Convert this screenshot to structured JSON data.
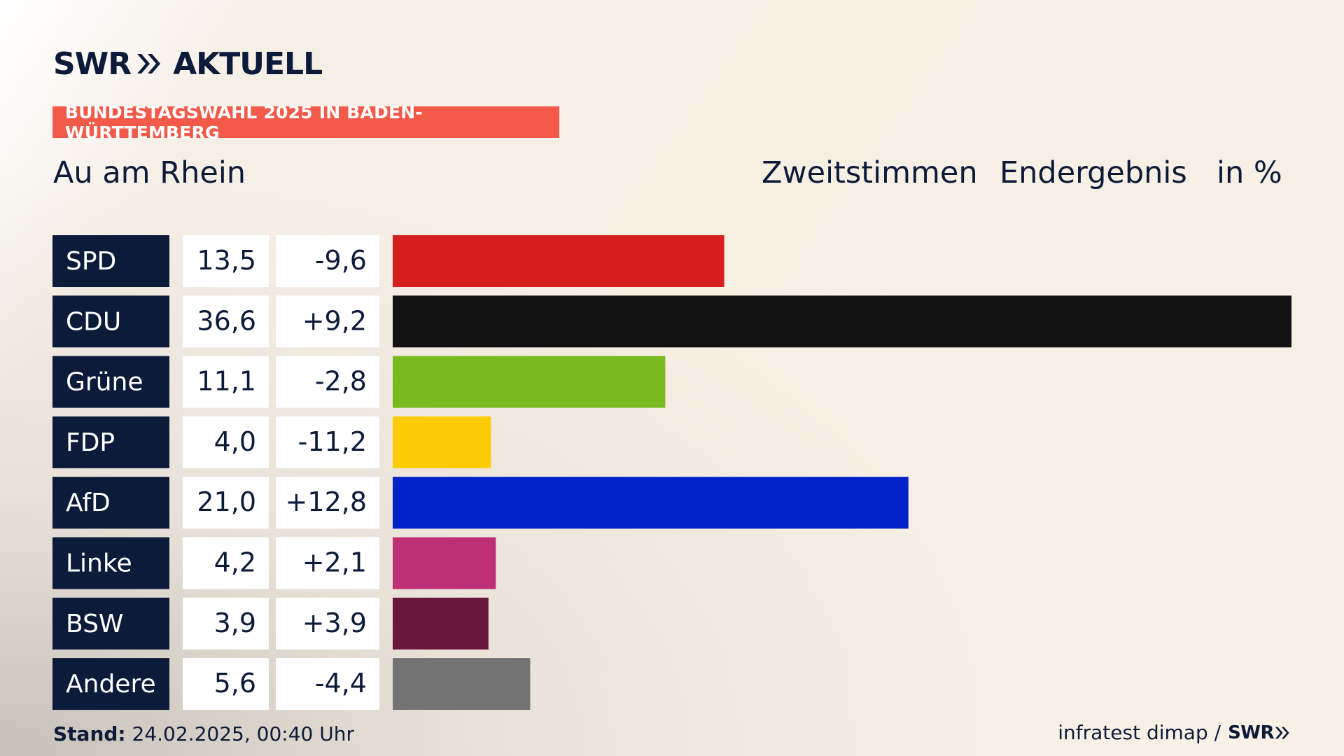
{
  "header": {
    "logo_left": "SWR",
    "logo_right": "AKTUELL",
    "banner": "BUNDESTAGSWAHL 2025 IN BADEN-WÜRTTEMBERG",
    "place": "Au am Rhein",
    "col_labels": [
      "Zweitstimmen",
      "Endergebnis",
      "in %"
    ]
  },
  "footer": {
    "stand_label": "Stand:",
    "stand_value": "24.02.2025, 00:40 Uhr",
    "source": "infratest dimap /",
    "source_brand": "SWR"
  },
  "colors": {
    "label_bg": "#0d1b3a",
    "banner": "#f35a4a"
  },
  "chart_data": {
    "type": "bar",
    "categories": [
      "SPD",
      "CDU",
      "Grüne",
      "FDP",
      "AfD",
      "Linke",
      "BSW",
      "Andere"
    ],
    "values": [
      13.5,
      36.6,
      11.1,
      4.0,
      21.0,
      4.2,
      3.9,
      5.6
    ],
    "value_labels": [
      "13,5",
      "36,6",
      "11,1",
      "4,0",
      "21,0",
      "4,2",
      "3,9",
      "5,6"
    ],
    "changes": [
      "-9,6",
      "+9,2",
      "-2,8",
      "-11,2",
      "+12,8",
      "+2,1",
      "+3,9",
      "-4,4"
    ],
    "colors": [
      "#d81f1f",
      "#121212",
      "#79bb1e",
      "#ffcd05",
      "#0022c8",
      "#bd3075",
      "#6a173e",
      "#737373"
    ],
    "xlim": [
      0,
      36.6
    ]
  }
}
